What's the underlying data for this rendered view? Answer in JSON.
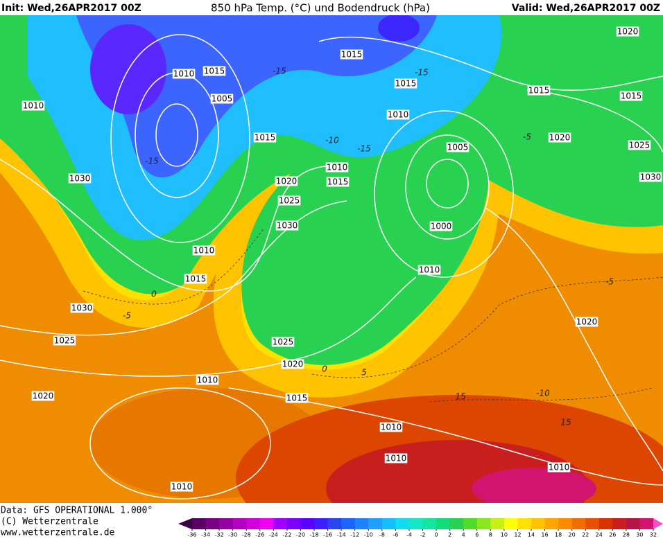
{
  "header": {
    "init": "Init: Wed,26APR2017 00Z",
    "title": "850 hPa Temp. (°C) und Bodendruck (hPa)",
    "valid": "Valid: Wed,26APR2017 00Z"
  },
  "map": {
    "isobar_labels": [
      1020,
      1015,
      1010,
      1015,
      1015,
      1015,
      1015,
      1010,
      1005,
      1010,
      1015,
      1020,
      1005,
      1025,
      1010,
      1015,
      1020,
      1030,
      1030,
      1025,
      1030,
      1000,
      1010,
      1010,
      1015,
      1030,
      1020,
      1025,
      1025,
      1020,
      1010,
      1020,
      1015,
      1010,
      1010,
      1010,
      1010
    ],
    "temperature_labels": [
      -15,
      -15,
      -15,
      -10,
      -15,
      -5,
      0,
      -5,
      0,
      5,
      -5,
      -10,
      15,
      15
    ]
  },
  "footer": {
    "data": "Data: GFS OPERATIONAL 1.000°",
    "copyright": "(C) Wetterzentrale",
    "url": "www.wetterzentrale.de"
  },
  "colorbar": {
    "labels": [
      -36,
      -34,
      -32,
      -30,
      -28,
      -26,
      -24,
      -22,
      -20,
      -18,
      -16,
      -14,
      -12,
      -10,
      -8,
      -6,
      -4,
      -2,
      0,
      2,
      4,
      6,
      8,
      10,
      12,
      14,
      16,
      18,
      20,
      22,
      24,
      26,
      28,
      30,
      32
    ],
    "colors": [
      "#3c0046",
      "#5a0064",
      "#780082",
      "#9600a0",
      "#b400be",
      "#d200dc",
      "#f000f0",
      "#a000ff",
      "#7d00ff",
      "#5a00ff",
      "#3c1eff",
      "#2846f0",
      "#1e64ff",
      "#1e82ff",
      "#1ea0ff",
      "#14beff",
      "#14dcf0",
      "#14e6c8",
      "#14e6a0",
      "#14dc78",
      "#28d250",
      "#50dc28",
      "#8ce61e",
      "#c8f014",
      "#ffff00",
      "#ffe100",
      "#ffc300",
      "#ffa500",
      "#ff8c00",
      "#f06e00",
      "#e65000",
      "#d73200",
      "#c81e1e",
      "#b41446",
      "#d2146e",
      "#f050c8"
    ]
  }
}
